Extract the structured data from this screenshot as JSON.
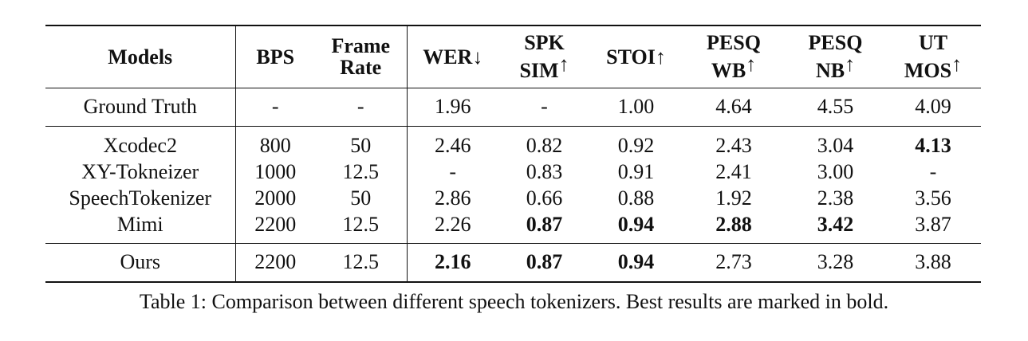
{
  "table": {
    "header": [
      {
        "lines": [
          "Models"
        ]
      },
      {
        "lines": [
          "BPS"
        ]
      },
      {
        "lines": [
          "Frame",
          "Rate"
        ]
      },
      {
        "lines": [
          "WER"
        ],
        "arrow": "↓"
      },
      {
        "lines": [
          "SPK",
          "SIM"
        ],
        "arrow": "↑"
      },
      {
        "lines": [
          "STOI"
        ],
        "arrow": "↑"
      },
      {
        "lines": [
          "PESQ",
          "WB"
        ],
        "arrow": "↑"
      },
      {
        "lines": [
          "PESQ",
          "NB"
        ],
        "arrow": "↑"
      },
      {
        "lines": [
          "UT",
          "MOS"
        ],
        "arrow": "↑"
      }
    ],
    "groups": [
      [
        [
          "Ground Truth",
          "-",
          "-",
          "1.96",
          "-",
          "1.00",
          "4.64",
          "4.55",
          "4.09"
        ]
      ],
      [
        [
          "Xcodec2",
          "800",
          "50",
          "2.46",
          "0.82",
          "0.92",
          "2.43",
          "3.04",
          {
            "text": "4.13",
            "bold": true
          }
        ],
        [
          "XY-Tokneizer",
          "1000",
          "12.5",
          "-",
          "0.83",
          "0.91",
          "2.41",
          "3.00",
          "-"
        ],
        [
          "SpeechTokenizer",
          "2000",
          "50",
          "2.86",
          "0.66",
          "0.88",
          "1.92",
          "2.38",
          "3.56"
        ],
        [
          "Mimi",
          "2200",
          "12.5",
          "2.26",
          {
            "text": "0.87",
            "bold": true
          },
          {
            "text": "0.94",
            "bold": true
          },
          {
            "text": "2.88",
            "bold": true
          },
          {
            "text": "3.42",
            "bold": true
          },
          "3.87"
        ]
      ],
      [
        [
          "Ours",
          "2200",
          "12.5",
          {
            "text": "2.16",
            "bold": true
          },
          {
            "text": "0.87",
            "bold": true
          },
          {
            "text": "0.94",
            "bold": true
          },
          "2.73",
          "3.28",
          "3.88"
        ]
      ]
    ],
    "caption": "Table 1: Comparison between different speech tokenizers. Best results are marked in bold."
  }
}
